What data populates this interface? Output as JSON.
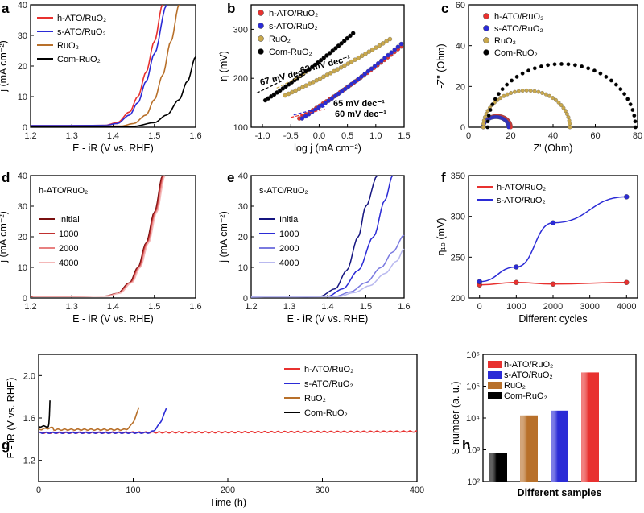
{
  "chart_data": [
    {
      "panel": "a",
      "type": "line",
      "xlabel": "E - iR (V vs. RHE)",
      "ylabel": "j (mA cm⁻²)",
      "xlim": [
        1.2,
        1.6
      ],
      "ylim": [
        0,
        40
      ],
      "xticks": [
        "1.2",
        "1.3",
        "1.4",
        "1.5",
        "1.6"
      ],
      "yticks": [
        "0",
        "10",
        "20",
        "30",
        "40"
      ],
      "series": [
        {
          "name": "h-ATO/RuO₂",
          "color": "#e8312f",
          "x": [
            1.2,
            1.38,
            1.41,
            1.44,
            1.46,
            1.48,
            1.5,
            1.52
          ],
          "y": [
            0.5,
            0.6,
            1.5,
            5,
            10,
            18,
            28,
            40
          ]
        },
        {
          "name": "s-ATO/RuO₂",
          "color": "#2b2bd6",
          "x": [
            1.2,
            1.38,
            1.41,
            1.44,
            1.46,
            1.48,
            1.5,
            1.53
          ],
          "y": [
            0.5,
            0.6,
            1.2,
            4,
            8,
            15,
            24,
            40
          ]
        },
        {
          "name": "RuO₂",
          "color": "#b8702a",
          "x": [
            1.2,
            1.42,
            1.45,
            1.48,
            1.5,
            1.52,
            1.54,
            1.56
          ],
          "y": [
            0.3,
            0.4,
            1.2,
            4,
            9,
            17,
            28,
            40
          ]
        },
        {
          "name": "Com-RuO₂",
          "color": "#000000",
          "x": [
            1.2,
            1.45,
            1.5,
            1.53,
            1.56,
            1.58,
            1.6
          ],
          "y": [
            0.2,
            0.3,
            1.5,
            4,
            9,
            15,
            23
          ]
        }
      ]
    },
    {
      "panel": "b",
      "type": "scatter",
      "xlabel": "log j (mA cm⁻²)",
      "ylabel": "η (mV)",
      "xlim": [
        -1.2,
        1.5
      ],
      "ylim": [
        100,
        350
      ],
      "xticks": [
        "-1.0",
        "-0.5",
        "0.0",
        "0.5",
        "1.0",
        "1.5"
      ],
      "yticks": [
        "100",
        "200",
        "300"
      ],
      "series": [
        {
          "name": "h-ATO/RuO₂",
          "color": "#e8312f",
          "x0": -0.35,
          "x1": 1.45,
          "y0": 118,
          "y1": 265
        },
        {
          "name": "s-ATO/RuO₂",
          "color": "#2b2bd6",
          "x0": -0.3,
          "x1": 1.45,
          "y0": 118,
          "y1": 270
        },
        {
          "name": "RuO₂",
          "color": "#c9a84c",
          "x0": -0.6,
          "x1": 1.25,
          "y0": 165,
          "y1": 280
        },
        {
          "name": "Com-RuO₂",
          "color": "#000000",
          "x0": -0.95,
          "x1": 0.6,
          "y0": 155,
          "y1": 292
        }
      ],
      "annotations": [
        "67 mV dec⁻¹",
        "62 mV dec⁻¹",
        "65 mV dec⁻¹",
        "60 mV dec⁻¹"
      ]
    },
    {
      "panel": "c",
      "type": "scatter",
      "xlabel": "Z' (Ohm)",
      "ylabel": "-Z'' (Ohm)",
      "xlim": [
        0,
        80
      ],
      "ylim": [
        0,
        60
      ],
      "xticks": [
        "0",
        "20",
        "40",
        "60",
        "80"
      ],
      "yticks": [
        "0",
        "20",
        "40",
        "60"
      ],
      "series": [
        {
          "name": "h-ATO/RuO₂",
          "color": "#e8312f",
          "start": 7,
          "end": 20,
          "peak": 5.5
        },
        {
          "name": "s-ATO/RuO₂",
          "color": "#2b2bd6",
          "start": 7,
          "end": 19,
          "peak": 5
        },
        {
          "name": "RuO₂",
          "color": "#c9a84c",
          "start": 7,
          "end": 48,
          "peak": 18
        },
        {
          "name": "Com-RuO₂",
          "color": "#000000",
          "start": 9,
          "end": 79,
          "peak": 31
        }
      ]
    },
    {
      "panel": "d",
      "type": "line",
      "title": "h-ATO/RuO₂",
      "xlabel": "E - iR (V vs. RHE)",
      "ylabel": "j (mA cm⁻²)",
      "xlim": [
        1.2,
        1.6
      ],
      "ylim": [
        0,
        40
      ],
      "xticks": [
        "1.2",
        "1.3",
        "1.4",
        "1.5",
        "1.6"
      ],
      "yticks": [
        "0",
        "10",
        "20",
        "30",
        "40"
      ],
      "series": [
        {
          "name": "Initial",
          "color": "#7a1010",
          "shift": 0
        },
        {
          "name": "1000",
          "color": "#c0302f",
          "shift": 0.002
        },
        {
          "name": "2000",
          "color": "#e88080",
          "shift": 0.004
        },
        {
          "name": "4000",
          "color": "#f4b8b8",
          "shift": 0.006
        }
      ]
    },
    {
      "panel": "e",
      "type": "line",
      "title": "s-ATO/RuO₂",
      "xlabel": "E - iR (V vs. RHE)",
      "ylabel": "j (mA cm⁻²)",
      "xlim": [
        1.2,
        1.6
      ],
      "ylim": [
        0,
        40
      ],
      "xticks": [
        "1.2",
        "1.3",
        "1.4",
        "1.5",
        "1.6"
      ],
      "yticks": [
        "0",
        "10",
        "20",
        "30",
        "40"
      ],
      "series": [
        {
          "name": "Initial",
          "color": "#151580",
          "x": [
            1.2,
            1.38,
            1.42,
            1.45,
            1.48,
            1.5,
            1.53
          ],
          "y": [
            0.3,
            0.5,
            3,
            9,
            20,
            30,
            40
          ]
        },
        {
          "name": "1000",
          "color": "#2b2bd6",
          "x": [
            1.2,
            1.4,
            1.44,
            1.48,
            1.52,
            1.55,
            1.57
          ],
          "y": [
            0.3,
            0.5,
            3,
            9,
            20,
            32,
            40
          ]
        },
        {
          "name": "2000",
          "color": "#7a7ae0",
          "x": [
            1.2,
            1.42,
            1.46,
            1.5,
            1.54,
            1.57,
            1.6
          ],
          "y": [
            0.3,
            0.5,
            2,
            5,
            10,
            15,
            20.5
          ]
        },
        {
          "name": "4000",
          "color": "#b9b9ef",
          "x": [
            1.2,
            1.43,
            1.47,
            1.51,
            1.55,
            1.58,
            1.6
          ],
          "y": [
            0.3,
            0.5,
            1.8,
            4,
            8,
            12,
            16
          ]
        }
      ]
    },
    {
      "panel": "f",
      "type": "line",
      "xlabel": "Different cycles",
      "ylabel": "η₁₀ (mV)",
      "xlim": [
        -300,
        4300
      ],
      "ylim": [
        200,
        350
      ],
      "xticks": [
        "0",
        "1000",
        "2000",
        "3000",
        "4000"
      ],
      "yticks": [
        "200",
        "250",
        "300",
        "350"
      ],
      "categories": [
        0,
        1000,
        2000,
        4000
      ],
      "series": [
        {
          "name": "h-ATO/RuO₂",
          "color": "#e8312f",
          "values": [
            216,
            219,
            217,
            219
          ]
        },
        {
          "name": "s-ATO/RuO₂",
          "color": "#2b2bd6",
          "values": [
            220,
            238,
            292,
            324
          ]
        }
      ]
    },
    {
      "panel": "g",
      "type": "line",
      "xlabel": "Time (h)",
      "ylabel": "E - iR (V vs. RHE)",
      "xlim": [
        0,
        400
      ],
      "ylim": [
        1.0,
        2.2
      ],
      "xticks": [
        "0",
        "100",
        "200",
        "300",
        "400"
      ],
      "yticks": [
        "1.2",
        "1.6",
        "2.0"
      ],
      "series": [
        {
          "name": "h-ATO/RuO₂",
          "color": "#e8312f",
          "end_time": 400,
          "base": 1.46,
          "end_v": 1.48
        },
        {
          "name": "s-ATO/RuO₂",
          "color": "#2b2bd6",
          "end_time": 135,
          "base": 1.46,
          "end_v": 1.69
        },
        {
          "name": "RuO₂",
          "color": "#b8702a",
          "end_time": 106,
          "base": 1.49,
          "end_v": 1.7
        },
        {
          "name": "Com-RuO₂",
          "color": "#000000",
          "end_time": 12,
          "base": 1.52,
          "end_v": 1.76
        }
      ]
    },
    {
      "panel": "h",
      "type": "bar",
      "xlabel": "Different samples",
      "ylabel": "S-number (a. u.)",
      "yscale": "log",
      "ylim": [
        100,
        1000000
      ],
      "yticks": [
        "10²",
        "10³",
        "10⁴",
        "10⁵",
        "10⁶"
      ],
      "categories": [
        "Com-RuO₂",
        "RuO₂",
        "s-ATO/RuO₂",
        "h-ATO/RuO₂"
      ],
      "values": [
        800,
        12000,
        17000,
        270000
      ],
      "colors": [
        "#000000",
        "#b8702a",
        "#2b2bd6",
        "#e8312f"
      ],
      "legend_order": [
        "h-ATO/RuO₂",
        "s-ATO/RuO₂",
        "RuO₂",
        "Com-RuO₂"
      ]
    }
  ]
}
